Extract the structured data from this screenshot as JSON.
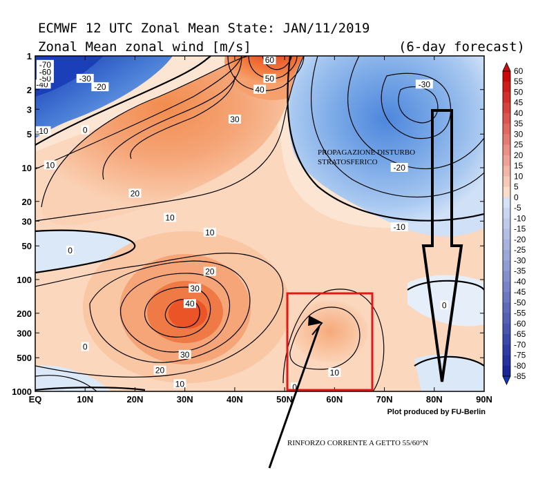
{
  "chart_data": {
    "type": "contour",
    "title": "ECMWF 12 UTC Zonal Mean State: JAN/11/2019",
    "subtitle": "Zonal Mean zonal wind [m/s]",
    "forecast_label": "(6-day forecast)",
    "credit": "Plot produced by FU-Berlin",
    "x_ticks": [
      "EQ",
      "10N",
      "20N",
      "30N",
      "40N",
      "50N",
      "60N",
      "70N",
      "80N",
      "90N"
    ],
    "y_ticks": [
      "1",
      "2",
      "3",
      "5",
      "10",
      "20",
      "30",
      "50",
      "100",
      "200",
      "300",
      "500",
      "1000"
    ],
    "y_scale": "log",
    "xlim": [
      0,
      90
    ],
    "ylim": [
      1000,
      1
    ],
    "colorbar_levels": [
      "60",
      "55",
      "50",
      "45",
      "40",
      "35",
      "30",
      "25",
      "20",
      "15",
      "10",
      "5",
      "0",
      "-5",
      "-10",
      "-15",
      "-20",
      "-25",
      "-30",
      "-35",
      "-40",
      "-45",
      "-50",
      "-55",
      "-60",
      "-65",
      "-70",
      "-75",
      "-80",
      "-85"
    ],
    "contour_labels": [
      {
        "text": "60",
        "lat": 47,
        "p": 1
      },
      {
        "text": "50",
        "lat": 47,
        "p": 1.6
      },
      {
        "text": "40",
        "lat": 45,
        "p": 2
      },
      {
        "text": "30",
        "lat": 40,
        "p": 3.7
      },
      {
        "text": "20",
        "lat": 20,
        "p": 17
      },
      {
        "text": "10",
        "lat": 27,
        "p": 28
      },
      {
        "text": "10",
        "lat": 35,
        "p": 38
      },
      {
        "text": "10",
        "lat": 3,
        "p": 9.5
      },
      {
        "text": "0",
        "lat": 10,
        "p": 4.6
      },
      {
        "text": "-10",
        "lat": 0,
        "p": 4.7
      },
      {
        "text": "-20",
        "lat": 13,
        "p": 1.9
      },
      {
        "text": "-30",
        "lat": 10,
        "p": 1.6
      },
      {
        "text": "-40",
        "lat": 1,
        "p": 1.8
      },
      {
        "text": "-50",
        "lat": 2,
        "p": 1.6
      },
      {
        "text": "-60",
        "lat": 2,
        "p": 1.4
      },
      {
        "text": "-70",
        "lat": 2,
        "p": 1.2
      },
      {
        "text": "-30",
        "lat": 78,
        "p": 1.8
      },
      {
        "text": "-20",
        "lat": 73,
        "p": 10
      },
      {
        "text": "-10",
        "lat": 73,
        "p": 34
      },
      {
        "text": "0",
        "lat": 7,
        "p": 55
      },
      {
        "text": "20",
        "lat": 35,
        "p": 85
      },
      {
        "text": "30",
        "lat": 32,
        "p": 120
      },
      {
        "text": "40",
        "lat": 31,
        "p": 165
      },
      {
        "text": "30",
        "lat": 30,
        "p": 470
      },
      {
        "text": "20",
        "lat": 25,
        "p": 650
      },
      {
        "text": "10",
        "lat": 29,
        "p": 860
      },
      {
        "text": "0",
        "lat": 10,
        "p": 400
      },
      {
        "text": "10",
        "lat": 60,
        "p": 680
      },
      {
        "text": "0",
        "lat": 82,
        "p": 170
      },
      {
        "text": "0",
        "lat": 52,
        "p": 950
      }
    ]
  },
  "annotations": {
    "stratospheric": "PROPAGAZIONE DISTURBO STRATOSFERICO",
    "jet": "RINFORZO CORRENTE A GETTO 55/60°N"
  }
}
